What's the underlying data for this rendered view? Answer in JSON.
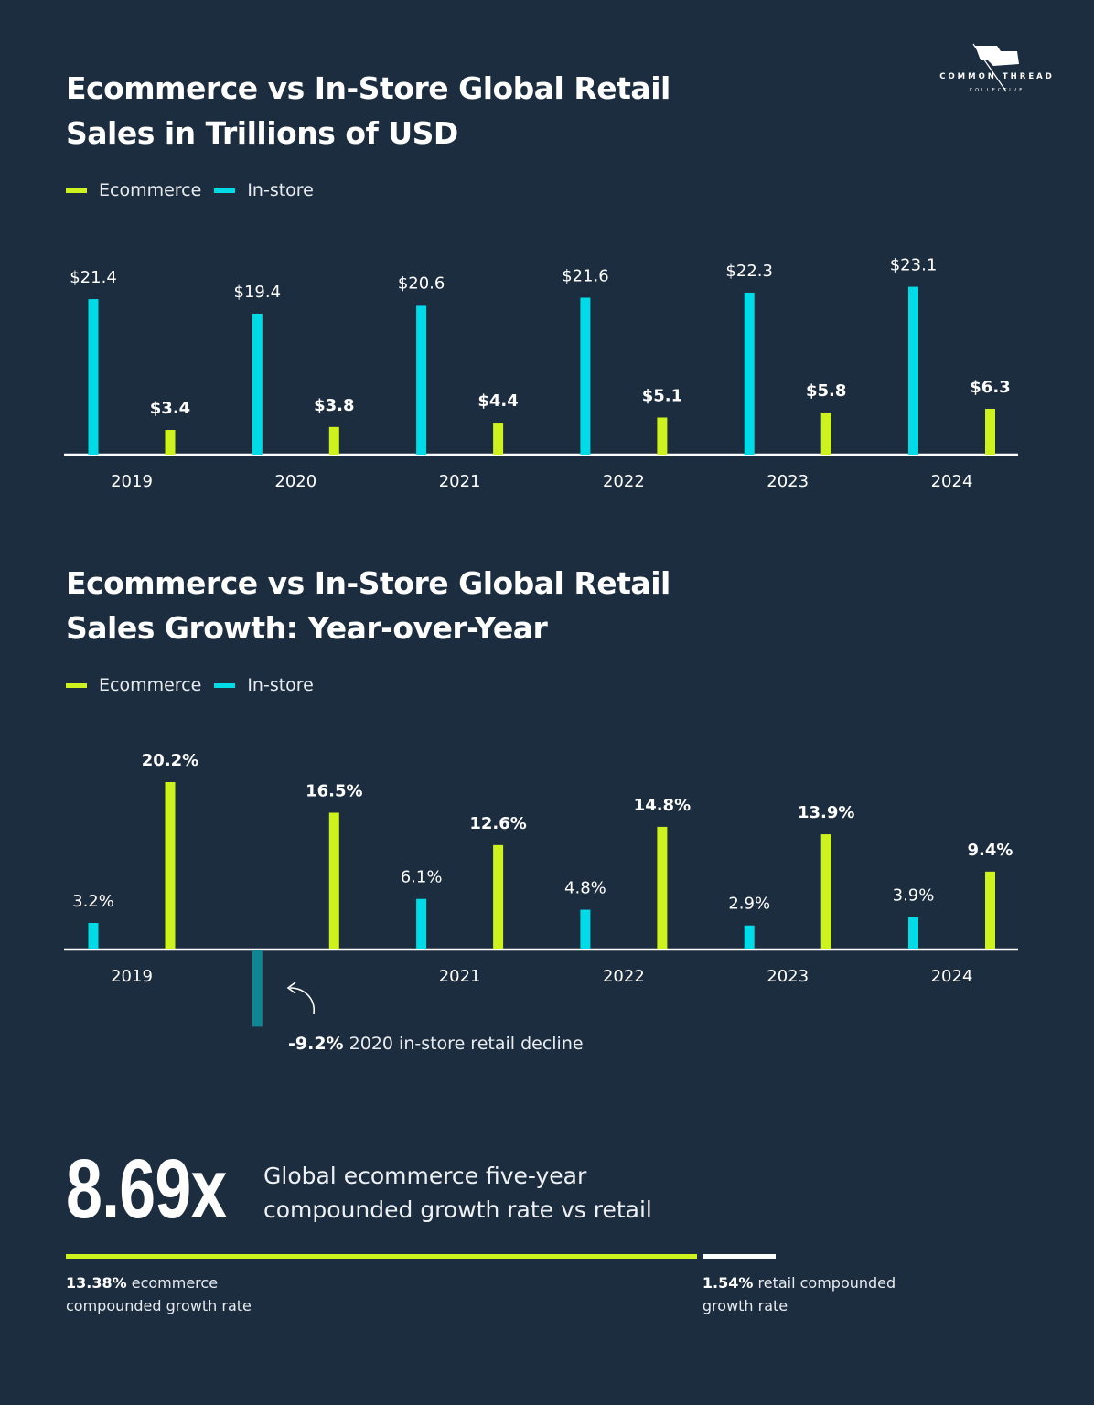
{
  "brand": {
    "logo_text": "COMMON THREAD",
    "logo_subtext": "COLLECTIVE"
  },
  "colors": {
    "background": "#1d2d40",
    "ecommerce": "#cdf21d",
    "in_store": "#00dbe8",
    "negative_in_store": "#0f8792",
    "axis": "#ffffff"
  },
  "chart_data": [
    {
      "type": "bar",
      "title": "Ecommerce vs In-Store Global Retail Sales in Trillions of USD",
      "legend": [
        "Ecommerce",
        "In-store"
      ],
      "legend_placement": "top-left",
      "categories": [
        "2019",
        "2020",
        "2021",
        "2022",
        "2023",
        "2024"
      ],
      "tick_labels": [
        "2019",
        "2020",
        "2021",
        "2022",
        "2023",
        "2024"
      ],
      "series": [
        {
          "name": "In-store",
          "values": [
            21.4,
            19.4,
            20.6,
            21.6,
            22.3,
            23.1
          ],
          "labels": [
            "$21.4",
            "$19.4",
            "$20.6",
            "$21.6",
            "$22.3",
            "$23.1"
          ]
        },
        {
          "name": "Ecommerce",
          "values": [
            3.4,
            3.8,
            4.4,
            5.1,
            5.8,
            6.3
          ],
          "labels": [
            "$3.4",
            "$3.8",
            "$4.4",
            "$5.1",
            "$5.8",
            "$6.3"
          ]
        }
      ],
      "unit": "trillions USD",
      "grid": false
    },
    {
      "type": "bar",
      "title": "Ecommerce vs In-Store Global Retail Sales Growth: Year-over-Year",
      "legend": [
        "Ecommerce",
        "In-store"
      ],
      "legend_placement": "top-left",
      "categories": [
        "2019",
        "2020",
        "2021",
        "2022",
        "2023",
        "2024"
      ],
      "tick_labels": [
        "2019",
        "",
        "2021",
        "2022",
        "2023",
        "2024"
      ],
      "series": [
        {
          "name": "In-store",
          "values": [
            3.2,
            -9.2,
            6.1,
            4.8,
            2.9,
            3.9
          ],
          "labels": [
            "3.2%",
            "",
            "6.1%",
            "4.8%",
            "2.9%",
            "3.9%"
          ]
        },
        {
          "name": "Ecommerce",
          "values": [
            20.2,
            16.5,
            12.6,
            14.8,
            13.9,
            9.4
          ],
          "labels": [
            "20.2%",
            "16.5%",
            "12.6%",
            "14.8%",
            "13.9%",
            "9.4%"
          ]
        }
      ],
      "unit": "%",
      "grid": false,
      "annotation": {
        "value": "-9.2%",
        "text": "2020 in-store retail decline"
      }
    }
  ],
  "summary": {
    "multiplier": "8.69x",
    "description": "Global ecommerce five-year compounded growth rate vs retail",
    "ecommerce_rate": 13.38,
    "ecommerce_rate_label": "13.38%",
    "ecommerce_rate_text": "ecommerce compounded growth rate",
    "retail_rate": 1.54,
    "retail_rate_label": "1.54%",
    "retail_rate_text": "retail compounded growth rate"
  }
}
